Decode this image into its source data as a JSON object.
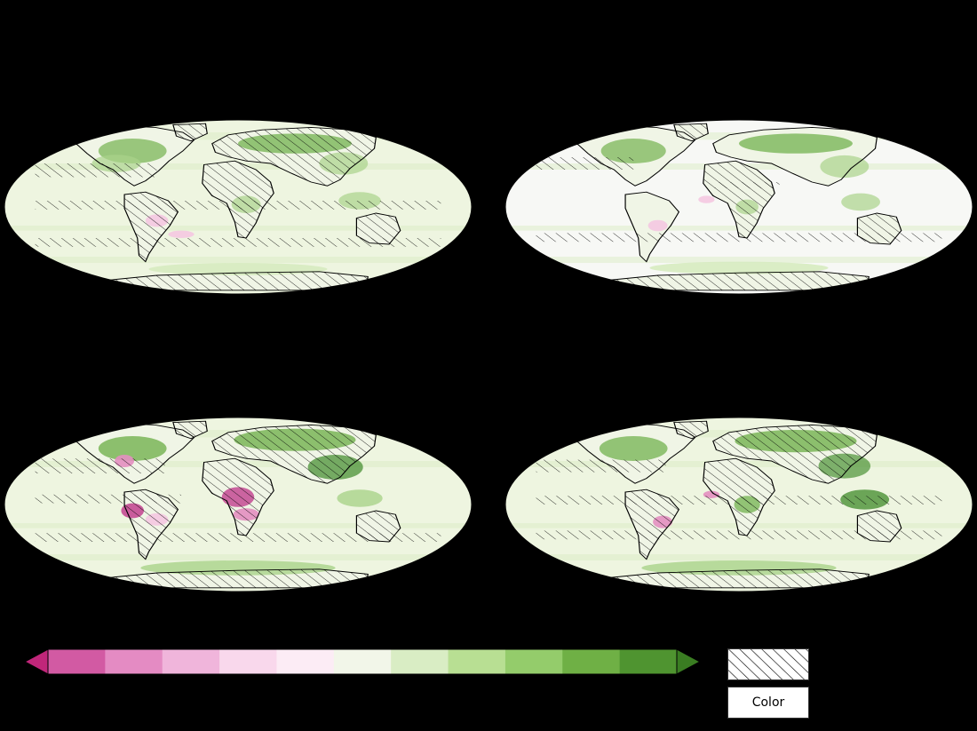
{
  "colors": {
    "ocean_base": "#eef5e0",
    "ocean_base_light": "#f7f8f5",
    "land_base": "#f0f5e6",
    "green_light": "#d6ebc0",
    "green_mid": "#a9d38a",
    "green_strong": "#73b24f",
    "green_dark": "#3f8a2a",
    "pink_light": "#f4c8e1",
    "pink_mid": "#e38fc0",
    "magenta": "#c2408e",
    "coast": "#000000",
    "hatch": "#000000"
  },
  "colorbar": {
    "bins": [
      "#c0267a",
      "#d25aa3",
      "#e48bc3",
      "#f0b5db",
      "#f9d8ec",
      "#fcecf5",
      "#f2f6e9",
      "#d9edc4",
      "#b8df93",
      "#94cc6b",
      "#6fb045",
      "#4f9430",
      "#3a7d22"
    ],
    "extend": "both"
  },
  "legend": {
    "color_label": "Color"
  },
  "panels": [
    {
      "id": "top-left",
      "variant": 0
    },
    {
      "id": "top-right",
      "variant": 1
    },
    {
      "id": "bottom-left",
      "variant": 2
    },
    {
      "id": "bottom-right",
      "variant": 3
    }
  ]
}
